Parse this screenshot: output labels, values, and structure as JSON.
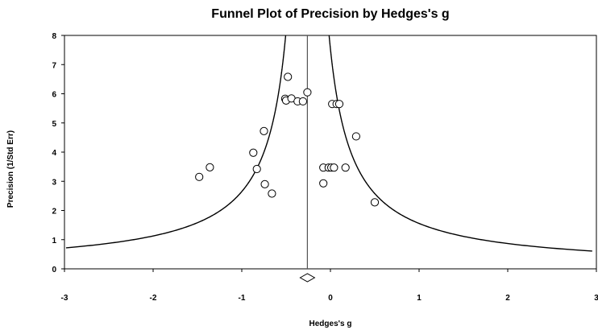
{
  "chart_data": {
    "type": "scatter",
    "title": "Funnel Plot of Precision by Hedges's g",
    "xlabel": "Hedges's g",
    "ylabel": "Precision (1/Std Err)",
    "xlim": [
      -3,
      3
    ],
    "ylim": [
      0,
      8
    ],
    "x_ticks": [
      "-3",
      "-2",
      "-1",
      "0",
      "1",
      "2",
      "3"
    ],
    "y_ticks": [
      "0",
      "1",
      "2",
      "3",
      "4",
      "5",
      "6",
      "7",
      "8"
    ],
    "pooled_effect": -0.26,
    "funnel_z": 1.96,
    "points": [
      {
        "x": -1.48,
        "y": 3.15
      },
      {
        "x": -1.36,
        "y": 3.48
      },
      {
        "x": -0.87,
        "y": 3.98
      },
      {
        "x": -0.83,
        "y": 3.42
      },
      {
        "x": -0.75,
        "y": 4.72
      },
      {
        "x": -0.74,
        "y": 2.9
      },
      {
        "x": -0.66,
        "y": 2.58
      },
      {
        "x": -0.51,
        "y": 5.83
      },
      {
        "x": -0.5,
        "y": 5.77
      },
      {
        "x": -0.48,
        "y": 6.58
      },
      {
        "x": -0.44,
        "y": 5.84
      },
      {
        "x": -0.37,
        "y": 5.74
      },
      {
        "x": -0.31,
        "y": 5.74
      },
      {
        "x": -0.26,
        "y": 6.05
      },
      {
        "x": -0.08,
        "y": 3.47
      },
      {
        "x": -0.08,
        "y": 2.93
      },
      {
        "x": -0.02,
        "y": 3.47
      },
      {
        "x": 0.01,
        "y": 3.47
      },
      {
        "x": 0.02,
        "y": 5.65
      },
      {
        "x": 0.04,
        "y": 3.47
      },
      {
        "x": 0.07,
        "y": 5.65
      },
      {
        "x": 0.1,
        "y": 5.65
      },
      {
        "x": 0.17,
        "y": 3.47
      },
      {
        "x": 0.29,
        "y": 4.54
      },
      {
        "x": 0.5,
        "y": 2.28
      }
    ],
    "grid": false,
    "legend": "none"
  }
}
